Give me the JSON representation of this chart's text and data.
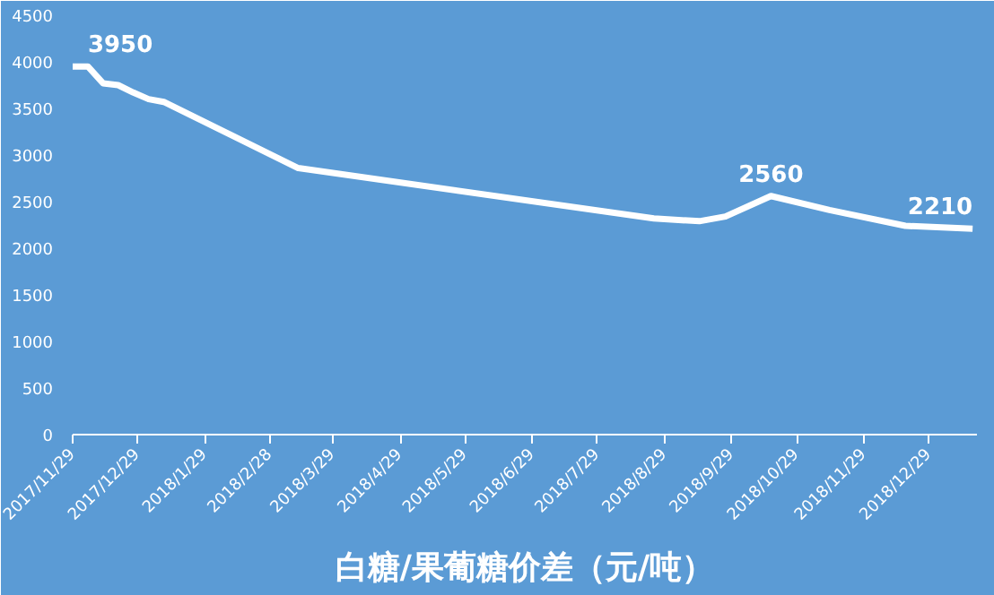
{
  "chart_data": {
    "type": "line",
    "title": "白糖/果葡糖价差（元/吨）",
    "x": [
      "2017-11-29",
      "2017-12-06",
      "2017-12-13",
      "2017-12-20",
      "2017-12-27",
      "2018-01-03",
      "2018-01-10",
      "2018-03-13",
      "2018-08-24",
      "2018-09-14",
      "2018-09-26",
      "2018-10-17",
      "2018-11-13",
      "2018-12-18",
      "2019-01-18"
    ],
    "series": [
      {
        "color": "#ffffff",
        "values": [
          3950,
          3950,
          3770,
          3750,
          3670,
          3600,
          3570,
          2860,
          2320,
          2290,
          2340,
          2560,
          2410,
          2240,
          2210
        ],
        "value_labels": [
          null,
          "3950",
          null,
          null,
          null,
          null,
          null,
          null,
          null,
          null,
          null,
          "2560",
          null,
          null,
          "2210"
        ]
      }
    ],
    "xlim": [
      "2017-11-29",
      "2019-01-20"
    ],
    "xticks": [
      {
        "value": "2017-11-29",
        "label": "2017/11/29"
      },
      {
        "value": "2017-12-29",
        "label": "2017/12/29"
      },
      {
        "value": "2018-01-29",
        "label": "2018/1/29"
      },
      {
        "value": "2018-02-28",
        "label": "2018/2/28"
      },
      {
        "value": "2018-03-29",
        "label": "2018/3/29"
      },
      {
        "value": "2018-04-29",
        "label": "2018/4/29"
      },
      {
        "value": "2018-05-29",
        "label": "2018/5/29"
      },
      {
        "value": "2018-06-29",
        "label": "2018/6/29"
      },
      {
        "value": "2018-07-29",
        "label": "2018/7/29"
      },
      {
        "value": "2018-08-29",
        "label": "2018/8/29"
      },
      {
        "value": "2018-09-29",
        "label": "2018/9/29"
      },
      {
        "value": "2018-10-29",
        "label": "2018/10/29"
      },
      {
        "value": "2018-11-29",
        "label": "2018/11/29"
      },
      {
        "value": "2018-12-29",
        "label": "2018/12/29"
      }
    ],
    "ylim": [
      0,
      4500
    ],
    "yticks": [
      0,
      500,
      1000,
      1500,
      2000,
      2500,
      3000,
      3500,
      4000,
      4500
    ],
    "grid": false,
    "marker": "none",
    "line_style": "solid"
  }
}
